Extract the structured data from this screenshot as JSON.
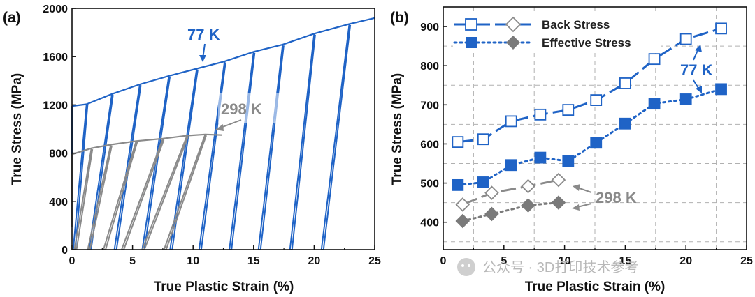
{
  "colors": {
    "blue": "#1f63c6",
    "gray": "#8a8a8a",
    "darkgray": "#7a7a7a",
    "axis": "#111111",
    "grid": "#b0b0b0"
  },
  "watermark": {
    "text": "公众号 · 3D打印技术参考"
  },
  "chart_data": [
    {
      "panel": "(a)",
      "type": "line",
      "xlabel": "True Plastic Strain (%)",
      "ylabel": "True Stress (MPa)",
      "xlim": [
        0,
        25
      ],
      "ylim": [
        0,
        2000
      ],
      "xticks": [
        "0",
        "5",
        "10",
        "15",
        "20",
        "25"
      ],
      "yticks": [
        "0",
        "400",
        "800",
        "1200",
        "1600",
        "2000"
      ],
      "series": [
        {
          "name": "77 K",
          "color": "#1f63c6",
          "envelope": [
            [
              0,
              1190
            ],
            [
              1.2,
              1205
            ],
            [
              3.3,
              1290
            ],
            [
              5.6,
              1370
            ],
            [
              8.0,
              1440
            ],
            [
              10.3,
              1500
            ],
            [
              12.6,
              1560
            ],
            [
              15.0,
              1640
            ],
            [
              17.4,
              1700
            ],
            [
              20.0,
              1790
            ],
            [
              22.9,
              1870
            ],
            [
              25,
              1920
            ]
          ],
          "unload_cycles": [
            [
              1.2,
              0.1
            ],
            [
              3.3,
              1.4
            ],
            [
              5.6,
              3.5
            ],
            [
              8.0,
              5.8
            ],
            [
              10.3,
              8.1
            ],
            [
              12.6,
              10.5
            ],
            [
              15.0,
              13.0
            ],
            [
              17.4,
              15.4
            ],
            [
              20.0,
              18.0
            ],
            [
              22.9,
              20.6
            ]
          ]
        },
        {
          "name": "298 K",
          "color": "#8a8a8a",
          "envelope": [
            [
              0,
              790
            ],
            [
              1.6,
              840
            ],
            [
              3.2,
              870
            ],
            [
              5.3,
              900
            ],
            [
              7.5,
              920
            ],
            [
              9.5,
              945
            ],
            [
              11.0,
              955
            ],
            [
              12.4,
              950
            ]
          ],
          "unload_cycles": [
            [
              1.6,
              0.2
            ],
            [
              3.2,
              1.3
            ],
            [
              5.3,
              2.6
            ],
            [
              7.5,
              4.1
            ],
            [
              9.5,
              5.8
            ],
            [
              11.0,
              7.6
            ]
          ]
        }
      ],
      "annotations": [
        {
          "text": "77 K",
          "color": "#1f63c6"
        },
        {
          "text": "298 K",
          "color": "#8a8a8a"
        }
      ]
    },
    {
      "panel": "(b)",
      "type": "line",
      "xlabel": "True Plastic Strain (%)",
      "ylabel": "True Stress (MPa)",
      "xlim": [
        0,
        25
      ],
      "ylim": [
        330,
        950
      ],
      "xticks": [
        "0",
        "5",
        "10",
        "15",
        "20",
        "25"
      ],
      "yticks": [
        "400",
        "500",
        "600",
        "700",
        "800",
        "900"
      ],
      "legend": [
        {
          "label": "Back Stress"
        },
        {
          "label": "Effective Stress"
        }
      ],
      "series": [
        {
          "name": "Back Stress 77 K",
          "color": "#1f63c6",
          "marker": "open-square",
          "dash": "long",
          "x": [
            1.2,
            3.3,
            5.6,
            8.0,
            10.3,
            12.6,
            15.0,
            17.4,
            20.0,
            22.9
          ],
          "y": [
            605,
            612,
            658,
            675,
            687,
            712,
            755,
            817,
            868,
            895
          ]
        },
        {
          "name": "Effective Stress 77 K",
          "color": "#1f63c6",
          "marker": "filled-square",
          "dash": "dot",
          "x": [
            1.2,
            3.3,
            5.6,
            8.0,
            10.3,
            12.6,
            15.0,
            17.4,
            20.0,
            22.9
          ],
          "y": [
            495,
            502,
            546,
            565,
            556,
            603,
            652,
            703,
            714,
            740
          ]
        },
        {
          "name": "Back Stress 298 K",
          "color": "#8a8a8a",
          "marker": "open-diamond",
          "dash": "long",
          "x": [
            1.6,
            4.0,
            7.0,
            9.5
          ],
          "y": [
            445,
            475,
            492,
            508
          ]
        },
        {
          "name": "Effective Stress 298 K",
          "color": "#7a7a7a",
          "marker": "filled-diamond",
          "dash": "dot",
          "x": [
            1.6,
            4.0,
            7.0,
            9.5
          ],
          "y": [
            403,
            421,
            443,
            450
          ]
        }
      ],
      "annotations": [
        {
          "text": "77 K",
          "color": "#1f63c6"
        },
        {
          "text": "298 K",
          "color": "#8a8a8a"
        }
      ]
    }
  ]
}
